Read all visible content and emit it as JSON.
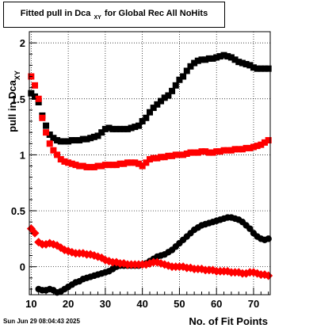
{
  "title": {
    "main": "Fitted pull in Dca",
    "sub": "XY",
    "rest": "for Global Rec All NoHits"
  },
  "timestamp": "Sun Jun 29 08:04:43 2025",
  "chart_data": {
    "type": "scatter",
    "title": "Fitted pull in Dca_XY for Global Rec All NoHits",
    "xlabel": "No. of Fit Points",
    "ylabel": "pull in Dca_XY",
    "ylabel_main": "pull in Dca",
    "ylabel_sub": "XY",
    "xlim": [
      9.5,
      74.5
    ],
    "ylim": [
      -0.25,
      2.1
    ],
    "x_ticks": [
      10,
      20,
      30,
      40,
      50,
      60,
      70
    ],
    "y_ticks": [
      0,
      0.5,
      1,
      1.5,
      2
    ],
    "y_tick_labels": [
      "0",
      "0.5",
      "1",
      "1.5",
      "2"
    ],
    "grid": true,
    "series": [
      {
        "color": "#000000",
        "marker": "square",
        "x": [
          10,
          11,
          12,
          13,
          14,
          15,
          16,
          17,
          18,
          19,
          20,
          21,
          22,
          23,
          24,
          25,
          26,
          27,
          28,
          29,
          30,
          31,
          32,
          33,
          34,
          35,
          36,
          37,
          38,
          39,
          40,
          41,
          42,
          43,
          44,
          45,
          46,
          47,
          48,
          49,
          50,
          51,
          52,
          53,
          54,
          55,
          56,
          57,
          58,
          59,
          60,
          61,
          62,
          63,
          64,
          65,
          66,
          67,
          68,
          69,
          70,
          71,
          72,
          73,
          74
        ],
        "values": [
          1.55,
          1.52,
          1.47,
          1.35,
          1.26,
          1.18,
          1.15,
          1.13,
          1.12,
          1.12,
          1.12,
          1.13,
          1.13,
          1.13,
          1.14,
          1.14,
          1.15,
          1.16,
          1.17,
          1.2,
          1.23,
          1.24,
          1.23,
          1.23,
          1.23,
          1.23,
          1.23,
          1.24,
          1.25,
          1.26,
          1.3,
          1.33,
          1.38,
          1.42,
          1.45,
          1.48,
          1.51,
          1.53,
          1.57,
          1.62,
          1.67,
          1.7,
          1.75,
          1.79,
          1.82,
          1.84,
          1.85,
          1.85,
          1.86,
          1.86,
          1.87,
          1.88,
          1.89,
          1.88,
          1.87,
          1.85,
          1.83,
          1.82,
          1.81,
          1.8,
          1.78,
          1.77,
          1.77,
          1.77,
          1.77
        ]
      },
      {
        "color": "#ff0000",
        "marker": "square",
        "x": [
          10,
          11,
          12,
          13,
          14,
          15,
          16,
          17,
          18,
          19,
          20,
          21,
          22,
          23,
          24,
          25,
          26,
          27,
          28,
          29,
          30,
          31,
          32,
          33,
          34,
          35,
          36,
          37,
          38,
          39,
          40,
          41,
          42,
          43,
          44,
          45,
          46,
          47,
          48,
          49,
          50,
          51,
          52,
          53,
          54,
          55,
          56,
          57,
          58,
          59,
          60,
          61,
          62,
          63,
          64,
          65,
          66,
          67,
          68,
          69,
          70,
          71,
          72,
          73,
          74
        ],
        "values": [
          1.7,
          1.62,
          1.5,
          1.33,
          1.2,
          1.1,
          1.04,
          1.0,
          0.96,
          0.94,
          0.93,
          0.92,
          0.91,
          0.9,
          0.9,
          0.89,
          0.89,
          0.89,
          0.9,
          0.9,
          0.91,
          0.91,
          0.91,
          0.91,
          0.92,
          0.92,
          0.93,
          0.93,
          0.93,
          0.92,
          0.9,
          0.93,
          0.96,
          0.97,
          0.97,
          0.98,
          0.98,
          0.99,
          0.99,
          1.0,
          1.0,
          1.0,
          1.01,
          1.02,
          1.02,
          1.02,
          1.03,
          1.03,
          1.02,
          1.02,
          1.03,
          1.03,
          1.04,
          1.04,
          1.04,
          1.05,
          1.05,
          1.05,
          1.06,
          1.06,
          1.07,
          1.08,
          1.09,
          1.11,
          1.13
        ]
      },
      {
        "color": "#000000",
        "marker": "circle",
        "x": [
          12,
          13,
          14,
          15,
          16,
          17,
          18,
          19,
          20,
          21,
          22,
          23,
          24,
          25,
          26,
          27,
          28,
          29,
          30,
          31,
          32,
          33,
          34,
          35,
          36,
          37,
          38,
          39,
          40,
          41,
          42,
          43,
          44,
          45,
          46,
          47,
          48,
          49,
          50,
          51,
          52,
          53,
          54,
          55,
          56,
          57,
          58,
          59,
          60,
          61,
          62,
          63,
          64,
          65,
          66,
          67,
          68,
          69,
          70,
          71,
          72,
          73,
          74
        ],
        "values": [
          -0.2,
          -0.21,
          -0.21,
          -0.2,
          -0.21,
          -0.23,
          -0.22,
          -0.2,
          -0.18,
          -0.16,
          -0.14,
          -0.13,
          -0.11,
          -0.1,
          -0.09,
          -0.08,
          -0.07,
          -0.06,
          -0.05,
          -0.04,
          -0.02,
          0.0,
          0.01,
          0.01,
          0.01,
          0.01,
          0.01,
          0.01,
          0.02,
          0.03,
          0.05,
          0.07,
          0.09,
          0.1,
          0.11,
          0.13,
          0.15,
          0.18,
          0.21,
          0.24,
          0.27,
          0.3,
          0.33,
          0.35,
          0.37,
          0.38,
          0.39,
          0.4,
          0.41,
          0.42,
          0.43,
          0.44,
          0.44,
          0.43,
          0.42,
          0.4,
          0.37,
          0.34,
          0.3,
          0.27,
          0.25,
          0.24,
          0.25
        ]
      },
      {
        "color": "#ff0000",
        "marker": "diamond",
        "x": [
          10,
          11,
          12,
          13,
          14,
          15,
          16,
          17,
          18,
          19,
          20,
          21,
          22,
          23,
          24,
          25,
          26,
          27,
          28,
          29,
          30,
          31,
          32,
          33,
          34,
          35,
          36,
          37,
          38,
          39,
          40,
          41,
          42,
          43,
          44,
          45,
          46,
          47,
          48,
          49,
          50,
          51,
          52,
          53,
          54,
          55,
          56,
          57,
          58,
          59,
          60,
          61,
          62,
          63,
          64,
          65,
          66,
          67,
          68,
          69,
          70,
          71,
          72,
          73,
          74
        ],
        "values": [
          0.34,
          0.3,
          0.22,
          0.2,
          0.2,
          0.21,
          0.2,
          0.19,
          0.17,
          0.15,
          0.14,
          0.13,
          0.12,
          0.12,
          0.12,
          0.11,
          0.11,
          0.1,
          0.09,
          0.08,
          0.06,
          0.05,
          0.04,
          0.04,
          0.03,
          0.03,
          0.02,
          0.02,
          0.02,
          0.02,
          0.02,
          0.02,
          0.03,
          0.04,
          0.04,
          0.03,
          0.02,
          0.01,
          0.0,
          0.0,
          0.0,
          0.0,
          -0.01,
          -0.01,
          -0.02,
          -0.02,
          -0.02,
          -0.03,
          -0.03,
          -0.03,
          -0.04,
          -0.04,
          -0.04,
          -0.04,
          -0.05,
          -0.05,
          -0.05,
          -0.06,
          -0.06,
          -0.05,
          -0.05,
          -0.06,
          -0.07,
          -0.07,
          -0.08
        ]
      }
    ]
  }
}
